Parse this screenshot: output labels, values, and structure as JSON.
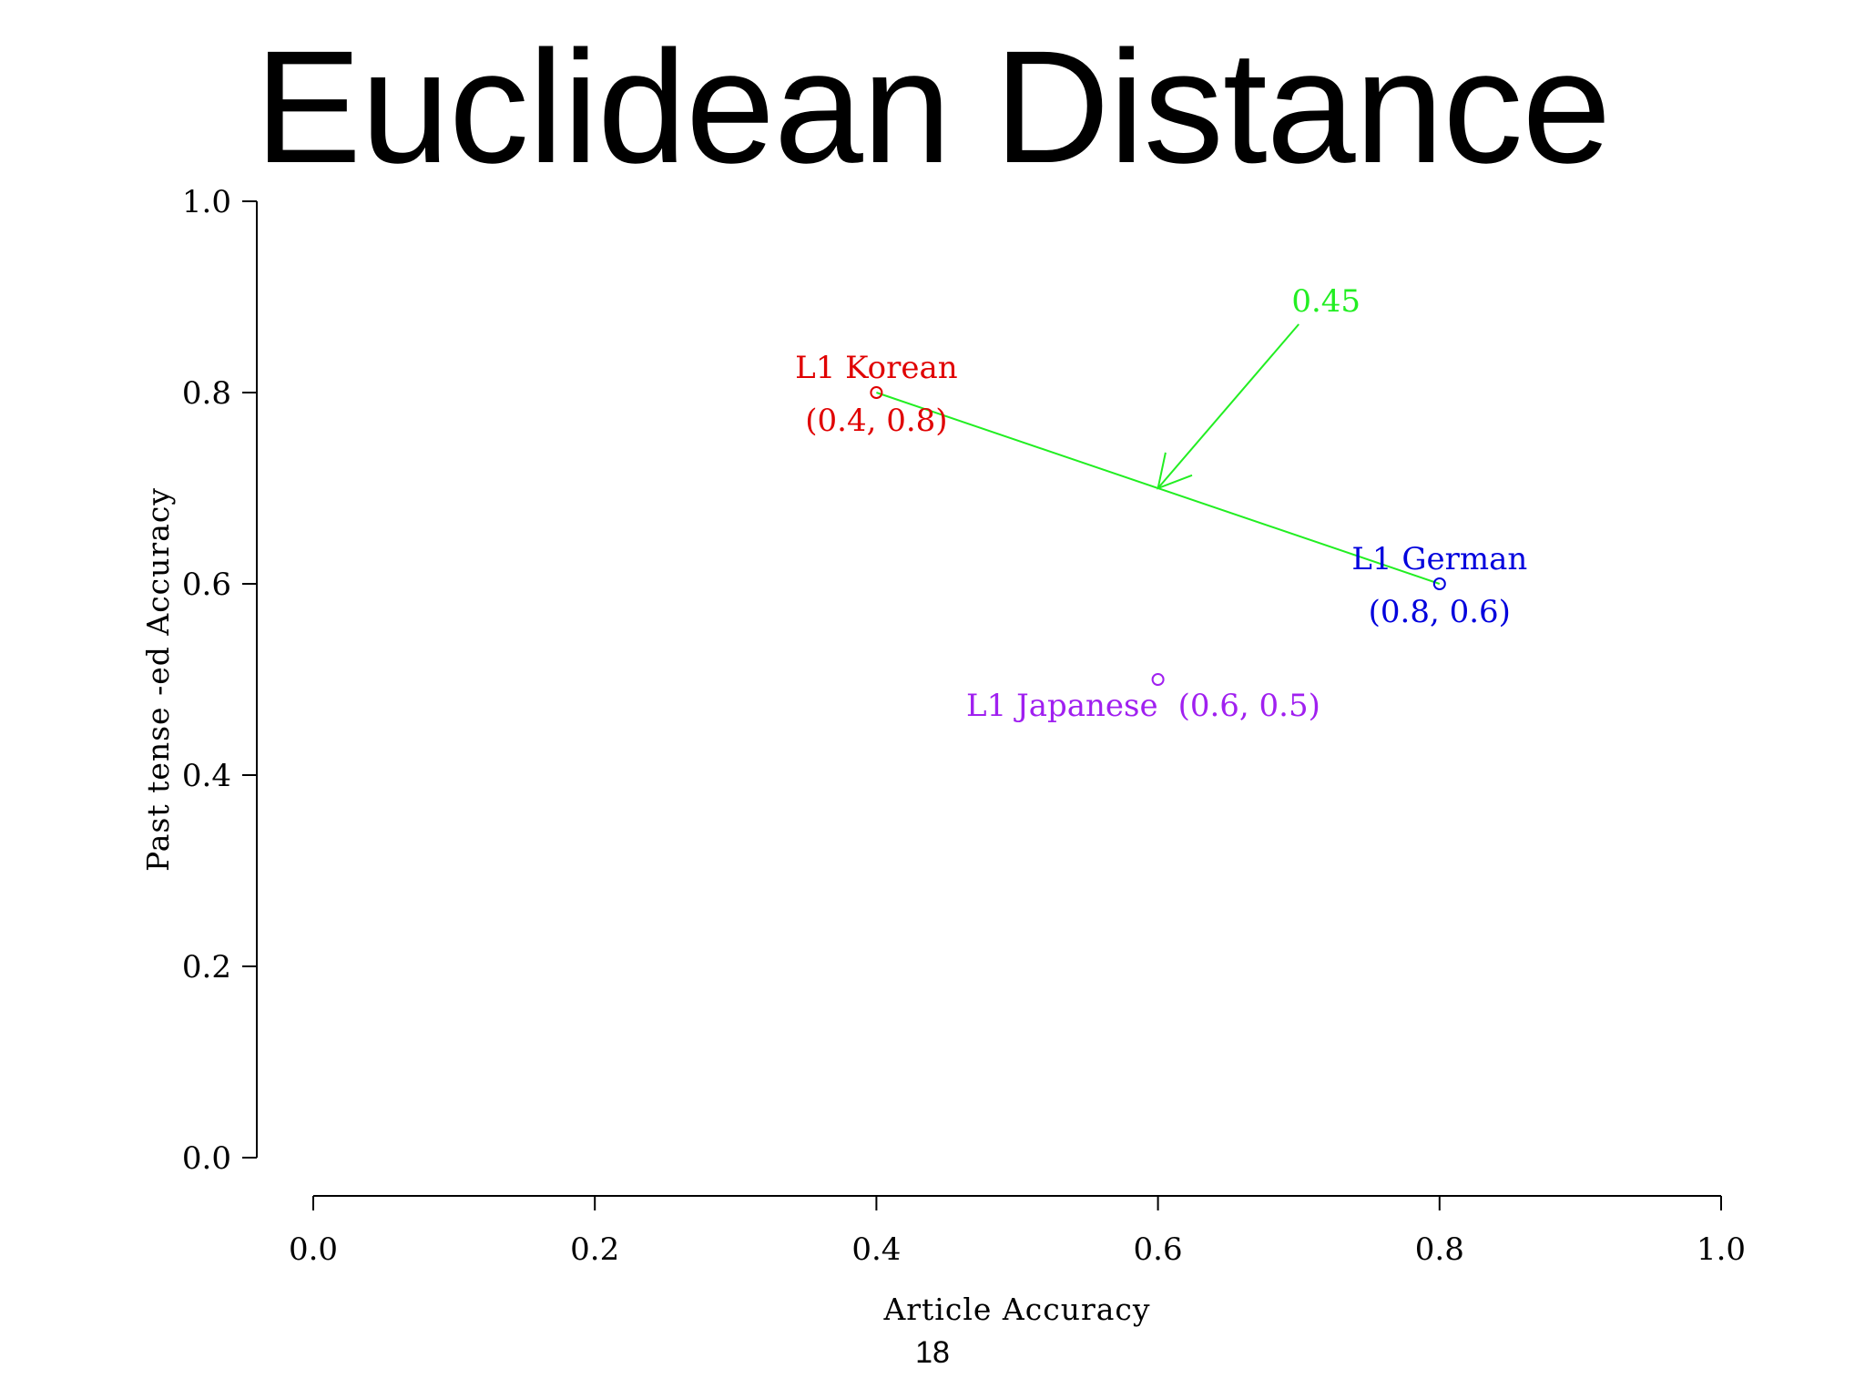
{
  "slide": {
    "title": "Euclidean Distance",
    "page_number": "18"
  },
  "chart_data": {
    "type": "scatter",
    "title": "",
    "xlabel": "Article Accuracy",
    "ylabel": "Past tense -ed Accuracy",
    "xlim": [
      0,
      1
    ],
    "ylim": [
      0,
      1
    ],
    "x_ticks": [
      0.0,
      0.2,
      0.4,
      0.6,
      0.8,
      1.0
    ],
    "y_ticks": [
      0.0,
      0.2,
      0.4,
      0.6,
      0.8,
      1.0
    ],
    "x_tick_labels": [
      "0.0",
      "0.2",
      "0.4",
      "0.6",
      "0.8",
      "1.0"
    ],
    "y_tick_labels": [
      "0.0",
      "0.2",
      "0.4",
      "0.6",
      "0.8",
      "1.0"
    ],
    "grid": false,
    "legend": "none",
    "points": [
      {
        "name": "L1 Korean",
        "x": 0.4,
        "y": 0.8,
        "coord_label": "(0.4, 0.8)",
        "color": "#e00000"
      },
      {
        "name": "L1 German",
        "x": 0.8,
        "y": 0.6,
        "coord_label": "(0.8, 0.6)",
        "color": "#0000dd"
      },
      {
        "name": "L1 Japanese",
        "x": 0.6,
        "y": 0.5,
        "coord_label": "(0.6, 0.5)",
        "color": "#a020f0"
      }
    ],
    "annotations": [
      {
        "type": "segment",
        "from": [
          0.4,
          0.8
        ],
        "to": [
          0.8,
          0.6
        ],
        "color": "#22ee22"
      },
      {
        "type": "arrow",
        "label": "0.45",
        "from": [
          0.7,
          0.9
        ],
        "to": [
          0.6,
          0.7
        ],
        "color": "#22ee22"
      }
    ]
  }
}
